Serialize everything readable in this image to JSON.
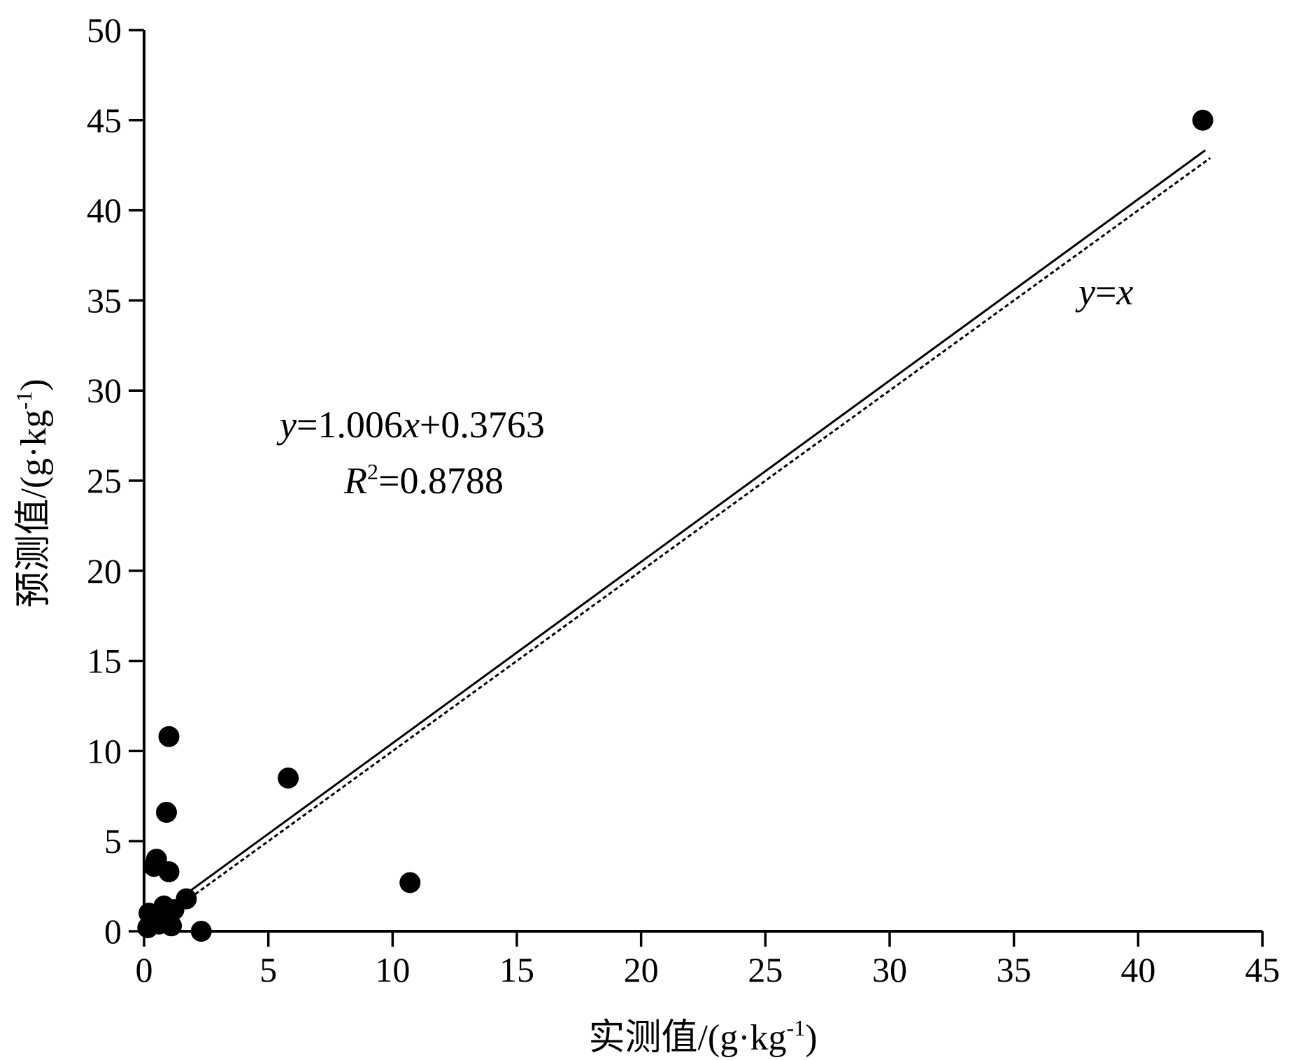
{
  "chart_data": {
    "type": "scatter",
    "xlabel": "实测值/(g·kg-1)",
    "xlabel_main": "实测值/(g·kg",
    "xlabel_sup": "-1",
    "xlabel_end": ")",
    "ylabel": "预测值/(g·kg-1)",
    "ylabel_main": "预测值/(g·kg",
    "ylabel_sup": "-1",
    "ylabel_end": ")",
    "xlim": [
      0,
      45
    ],
    "ylim": [
      0,
      50
    ],
    "x_ticks": [
      "0",
      "5",
      "10",
      "15",
      "20",
      "25",
      "30",
      "35",
      "40",
      "45"
    ],
    "y_ticks": [
      "0",
      "5",
      "10",
      "15",
      "20",
      "25",
      "30",
      "35",
      "40",
      "45",
      "50"
    ],
    "grid": false,
    "points": [
      {
        "x": 42.6,
        "y": 45.0
      },
      {
        "x": 1.0,
        "y": 10.8
      },
      {
        "x": 5.8,
        "y": 8.5
      },
      {
        "x": 0.9,
        "y": 6.6
      },
      {
        "x": 0.5,
        "y": 4.0
      },
      {
        "x": 0.4,
        "y": 3.6
      },
      {
        "x": 1.0,
        "y": 3.3
      },
      {
        "x": 10.7,
        "y": 2.7
      },
      {
        "x": 1.7,
        "y": 1.8
      },
      {
        "x": 0.8,
        "y": 1.4
      },
      {
        "x": 1.2,
        "y": 1.2
      },
      {
        "x": 0.6,
        "y": 1.0
      },
      {
        "x": 0.2,
        "y": 1.0
      },
      {
        "x": 0.9,
        "y": 0.7
      },
      {
        "x": 0.3,
        "y": 0.5
      },
      {
        "x": 0.6,
        "y": 0.4
      },
      {
        "x": 1.1,
        "y": 0.3
      },
      {
        "x": 0.15,
        "y": 0.2
      },
      {
        "x": 2.3,
        "y": 0.0
      }
    ],
    "fit_line": {
      "slope": 1.006,
      "intercept": 0.3763,
      "x_range": [
        1.6,
        42.7
      ]
    },
    "reference_line": {
      "label": "y=x",
      "x_range": [
        1.6,
        42.9
      ]
    },
    "annotations": {
      "equation": {
        "y": "y",
        "rest": "=1.006",
        "x": "x",
        "tail": "+0.3763"
      },
      "r2": {
        "R": "R",
        "sup": "2",
        "rest": "=0.8788"
      },
      "ref": {
        "y": "y",
        "eq": "=",
        "x": "x"
      }
    }
  }
}
